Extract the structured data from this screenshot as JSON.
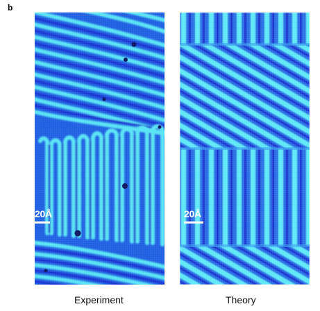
{
  "figure": {
    "panel_letter": "b",
    "panels": [
      {
        "caption": "Experiment",
        "scale_bar": "20Å"
      },
      {
        "caption": "Theory",
        "scale_bar": "20Å"
      }
    ]
  },
  "colors": {
    "stripe_dark": "#1e2fd6",
    "stripe_mid": "#2b6ee8",
    "stripe_light": "#55e6f6",
    "background": "#ffffff"
  }
}
